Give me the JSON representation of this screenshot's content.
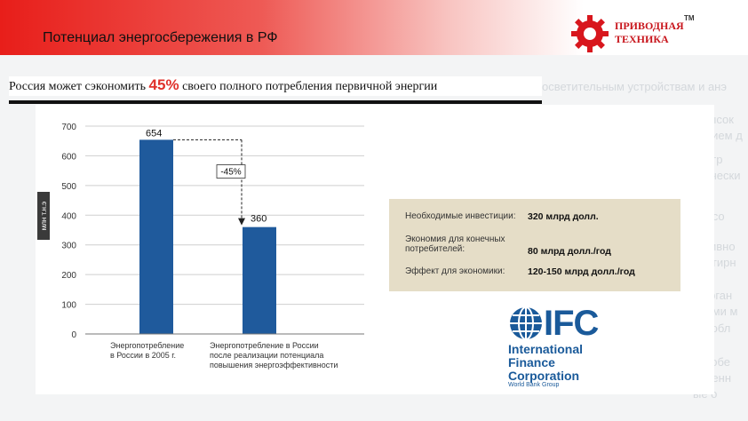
{
  "header": {
    "title": "Потенциал энергосбережения в РФ"
  },
  "logo": {
    "line1": "ПРИВОДНАЯ",
    "line2": "ТЕХНИКА",
    "tm": "TM"
  },
  "subtitle": {
    "before": "Россия может сэкономить ",
    "pct": "45%",
    "after": " своего полного потребления первичной энергии"
  },
  "ghost_texts": [
    {
      "text": "осветительным устройствам и анэ"
    },
    {
      "text": "х высок"
    },
    {
      "text": "ванием д"
    },
    {
      "text": "контр"
    },
    {
      "text": "етически"
    },
    {
      "text": "й и со"
    },
    {
      "text": "ективно"
    },
    {
      "text": "вартирн"
    },
    {
      "text": "и орган"
    },
    {
      "text": "анами м"
    },
    {
      "text": "у в обл"
    },
    {
      "text": "х с обе"
    },
    {
      "text": "авленн"
    },
    {
      "text": "ые о"
    }
  ],
  "chart_data": {
    "type": "bar",
    "categories": [
      "Энергопотребление в России в 2005 г.",
      "Энергопотребление в России после реализации потенциала повышения энергоэффективности"
    ],
    "values": [
      654,
      360
    ],
    "data_labels": [
      "654",
      "360"
    ],
    "ylabel": "млн т.н.э",
    "ylim": [
      0,
      700
    ],
    "yticks": [
      "0",
      "100",
      "200",
      "300",
      "400",
      "500",
      "600",
      "700"
    ],
    "annotation": "-45%",
    "grid": true,
    "bar_color": "#1f5a9c",
    "category_lines": [
      [
        "Энергопотребление",
        "в России в 2005 г."
      ],
      [
        "Энергопотребление в России",
        "после реализации потенциала",
        "повышения энергоэффективности"
      ]
    ]
  },
  "info": {
    "rows": [
      {
        "label": [
          "Необходимые инвестиции:"
        ],
        "value": "320 млрд долл."
      },
      {
        "label": [
          "Экономия для конечных",
          "потребителей:"
        ],
        "value": "80 млрд долл./год"
      },
      {
        "label": [
          "Эффект для экономики:"
        ],
        "value": "120-150 млрд долл./год"
      }
    ]
  },
  "ifc": {
    "mark": "IFC",
    "line1": "International",
    "line2": "Finance",
    "line3": "Corporation",
    "small": "World Bank Group"
  }
}
